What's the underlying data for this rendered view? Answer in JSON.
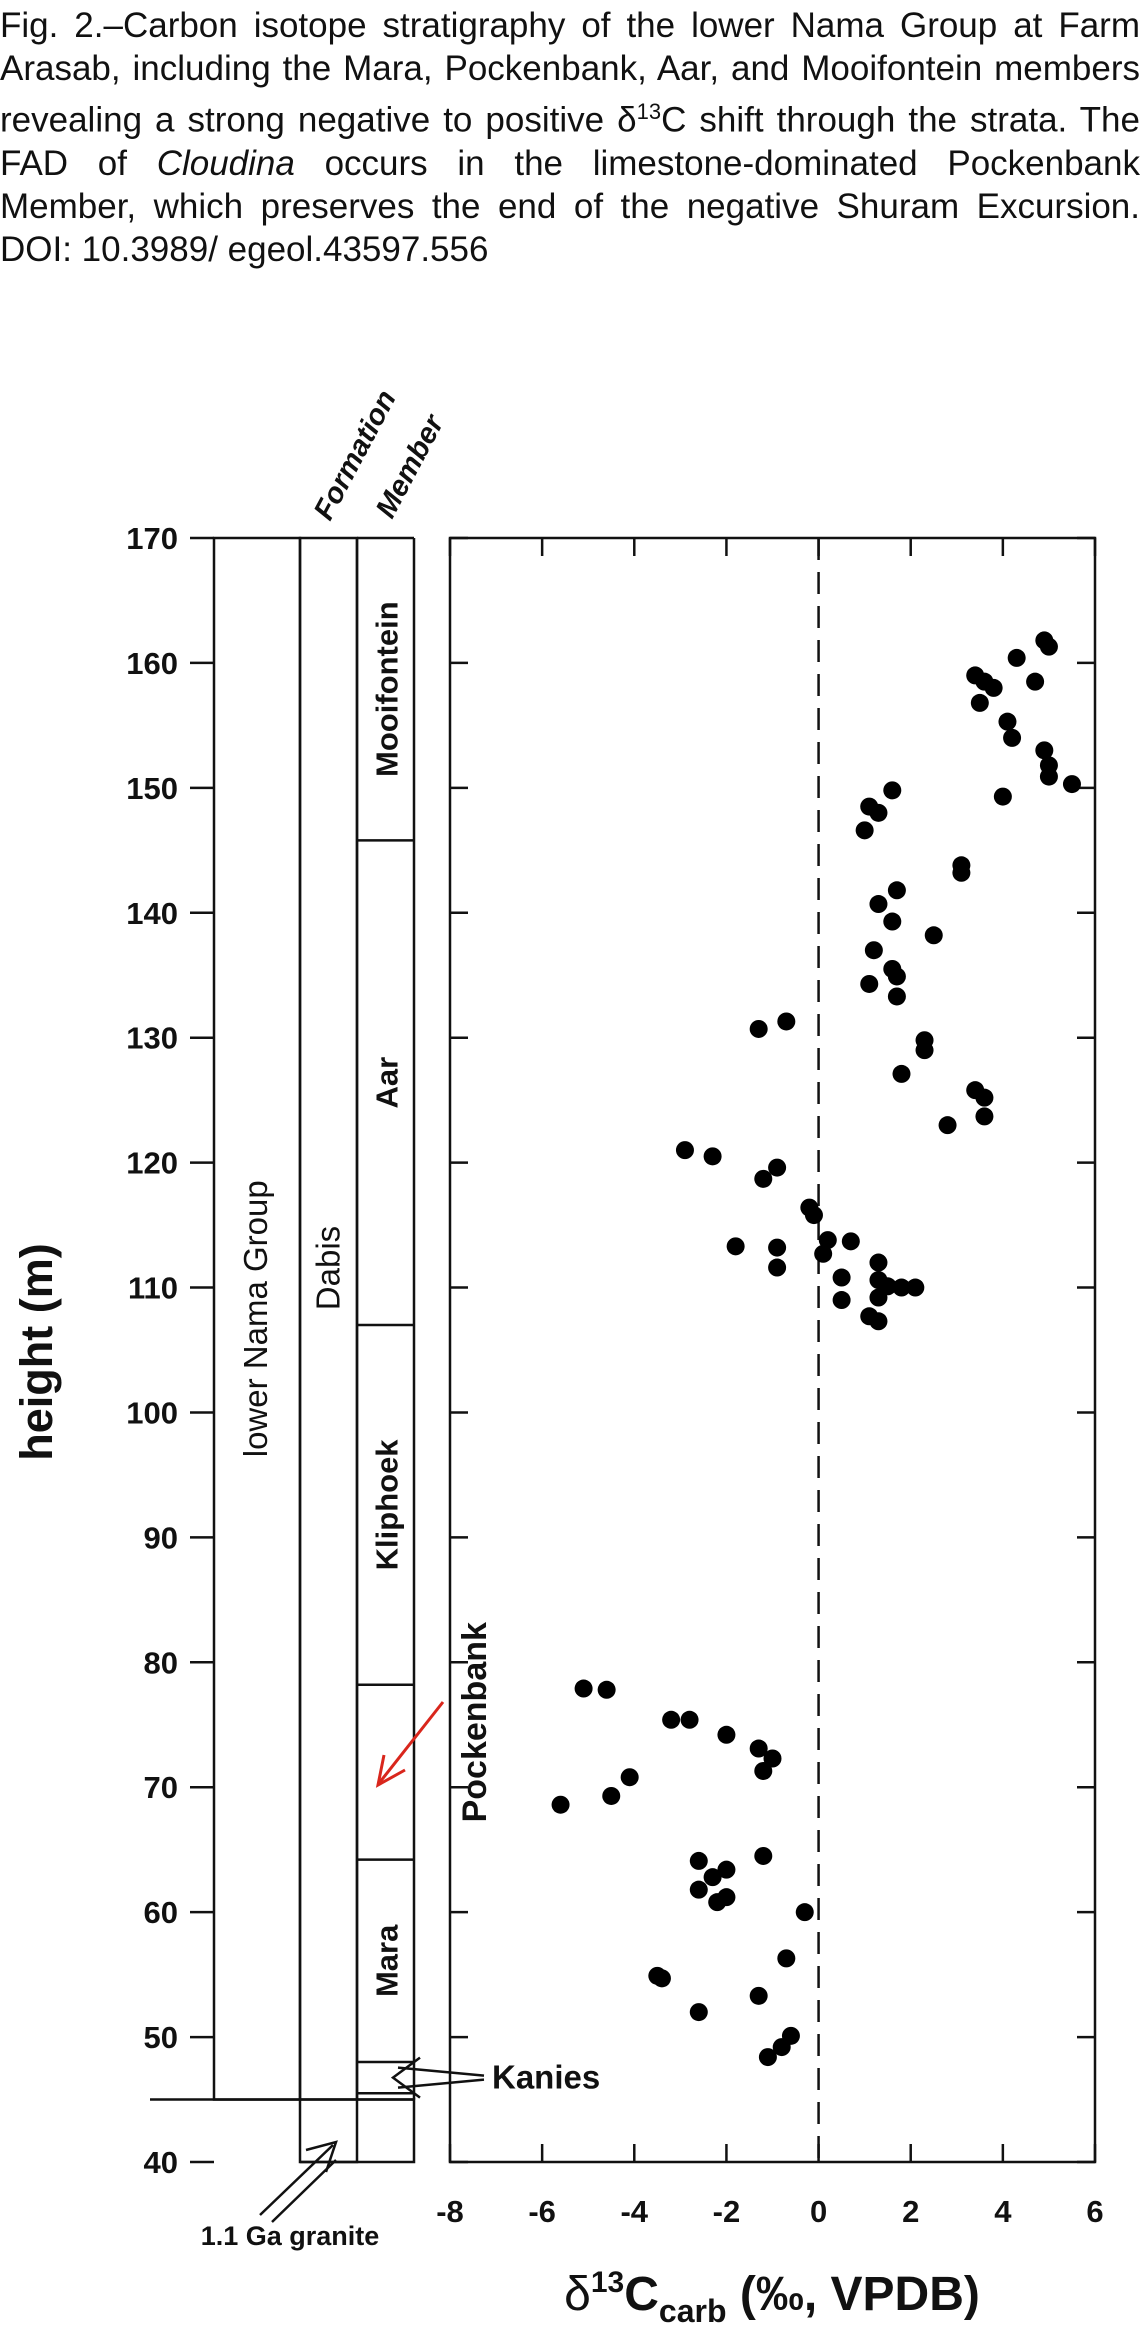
{
  "caption": [
    "Fig. 2.–Carbon isotope stratigraphy of the lower Nama Group at Farm Arasab, including the Mara, Pockenbank, Aar, and Mooifontein members revealing a strong negative to positive δ",
    "13",
    "C shift through the strata. The FAD of ",
    "Cloudina",
    " occurs in the limestone-dominated Pockenbank Member, which preserves the end of the negative Shuram Excursion. DOI: 10.3989/ egeol.43597.556"
  ],
  "chart_data": {
    "type": "scatter",
    "y_label": "height (m)",
    "x_label": [
      "δ",
      "13",
      "C",
      "carb",
      " (‰, VPDB)"
    ],
    "color": "#000000",
    "x": [
      4.9,
      5.0,
      4.3,
      3.4,
      3.6,
      3.8,
      4.7,
      3.5,
      4.1,
      4.2,
      4.9,
      5.0,
      5.0,
      5.5,
      4.0,
      1.6,
      1.1,
      1.3,
      1.0,
      3.1,
      3.1,
      1.7,
      1.3,
      1.6,
      1.2,
      2.5,
      1.6,
      1.7,
      1.1,
      1.7,
      2.3,
      2.3,
      1.8,
      3.4,
      3.6,
      3.6,
      2.8,
      -0.7,
      -1.3,
      -2.9,
      -2.3,
      -0.9,
      -1.2,
      -0.2,
      -0.1,
      0.2,
      0.7,
      1.3,
      -1.8,
      -0.9,
      -0.9,
      0.1,
      0.5,
      1.3,
      1.5,
      1.8,
      2.1,
      1.3,
      0.5,
      1.1,
      1.3,
      -5.1,
      -4.6,
      -3.2,
      -2.8,
      -2.0,
      -1.3,
      -1.0,
      -1.2,
      -4.1,
      -4.5,
      -5.6,
      -2.6,
      -1.2,
      -2.0,
      -2.3,
      -2.6,
      -2.0,
      -2.2,
      -0.3,
      -0.7,
      -3.5,
      -3.4,
      -1.3,
      -2.6,
      -0.6,
      -0.8,
      -1.1
    ],
    "y": [
      161.8,
      161.3,
      160.4,
      159,
      158.5,
      158,
      158.5,
      156.8,
      155.3,
      154,
      153,
      151.8,
      150.9,
      150.3,
      149.3,
      149.8,
      148.5,
      148,
      146.6,
      143.8,
      143.2,
      141.8,
      140.7,
      139.3,
      137,
      138.2,
      135.5,
      134.9,
      134.3,
      133.3,
      129.8,
      129,
      127.1,
      125.8,
      125.2,
      123.7,
      123,
      131.3,
      130.7,
      121,
      120.5,
      119.6,
      118.7,
      116.4,
      115.8,
      113.8,
      113.7,
      112,
      113.3,
      113.2,
      111.6,
      112.7,
      110.8,
      110.6,
      110.1,
      110,
      110,
      109.2,
      109,
      107.7,
      107.3,
      77.9,
      77.8,
      75.4,
      75.4,
      74.2,
      73.1,
      72.3,
      71.3,
      70.8,
      69.3,
      68.6,
      64.1,
      64.5,
      63.4,
      62.8,
      61.8,
      61.2,
      60.8,
      60,
      56.3,
      54.9,
      54.7,
      53.3,
      52,
      50.1,
      49.2,
      48.4
    ],
    "xlim": [
      -8,
      6
    ],
    "xticks": [
      -8,
      -6,
      -4,
      -2,
      0,
      2,
      4,
      6
    ],
    "ylim": [
      40,
      170
    ],
    "yticks": [
      40,
      50,
      60,
      70,
      80,
      90,
      100,
      110,
      120,
      130,
      140,
      150,
      160,
      170
    ],
    "reference_x": 0,
    "stratigraphy": {
      "formation_header": "Formation",
      "member_header": "Member",
      "group": "lower Nama Group",
      "group_base": 45,
      "formation": "Dabis",
      "granite": "1.1 Ga granite",
      "members": [
        {
          "name": "Mooifontein",
          "base": 145.8
        },
        {
          "name": "Aar",
          "base": 107
        },
        {
          "name": "Kliphoek",
          "base": 78.2
        },
        {
          "name": "Pockenbank",
          "base": 64.2,
          "color": "#d9261c"
        },
        {
          "name": "Mara",
          "base": 48
        },
        {
          "name": "Kanies",
          "base": 45.5
        }
      ]
    }
  }
}
